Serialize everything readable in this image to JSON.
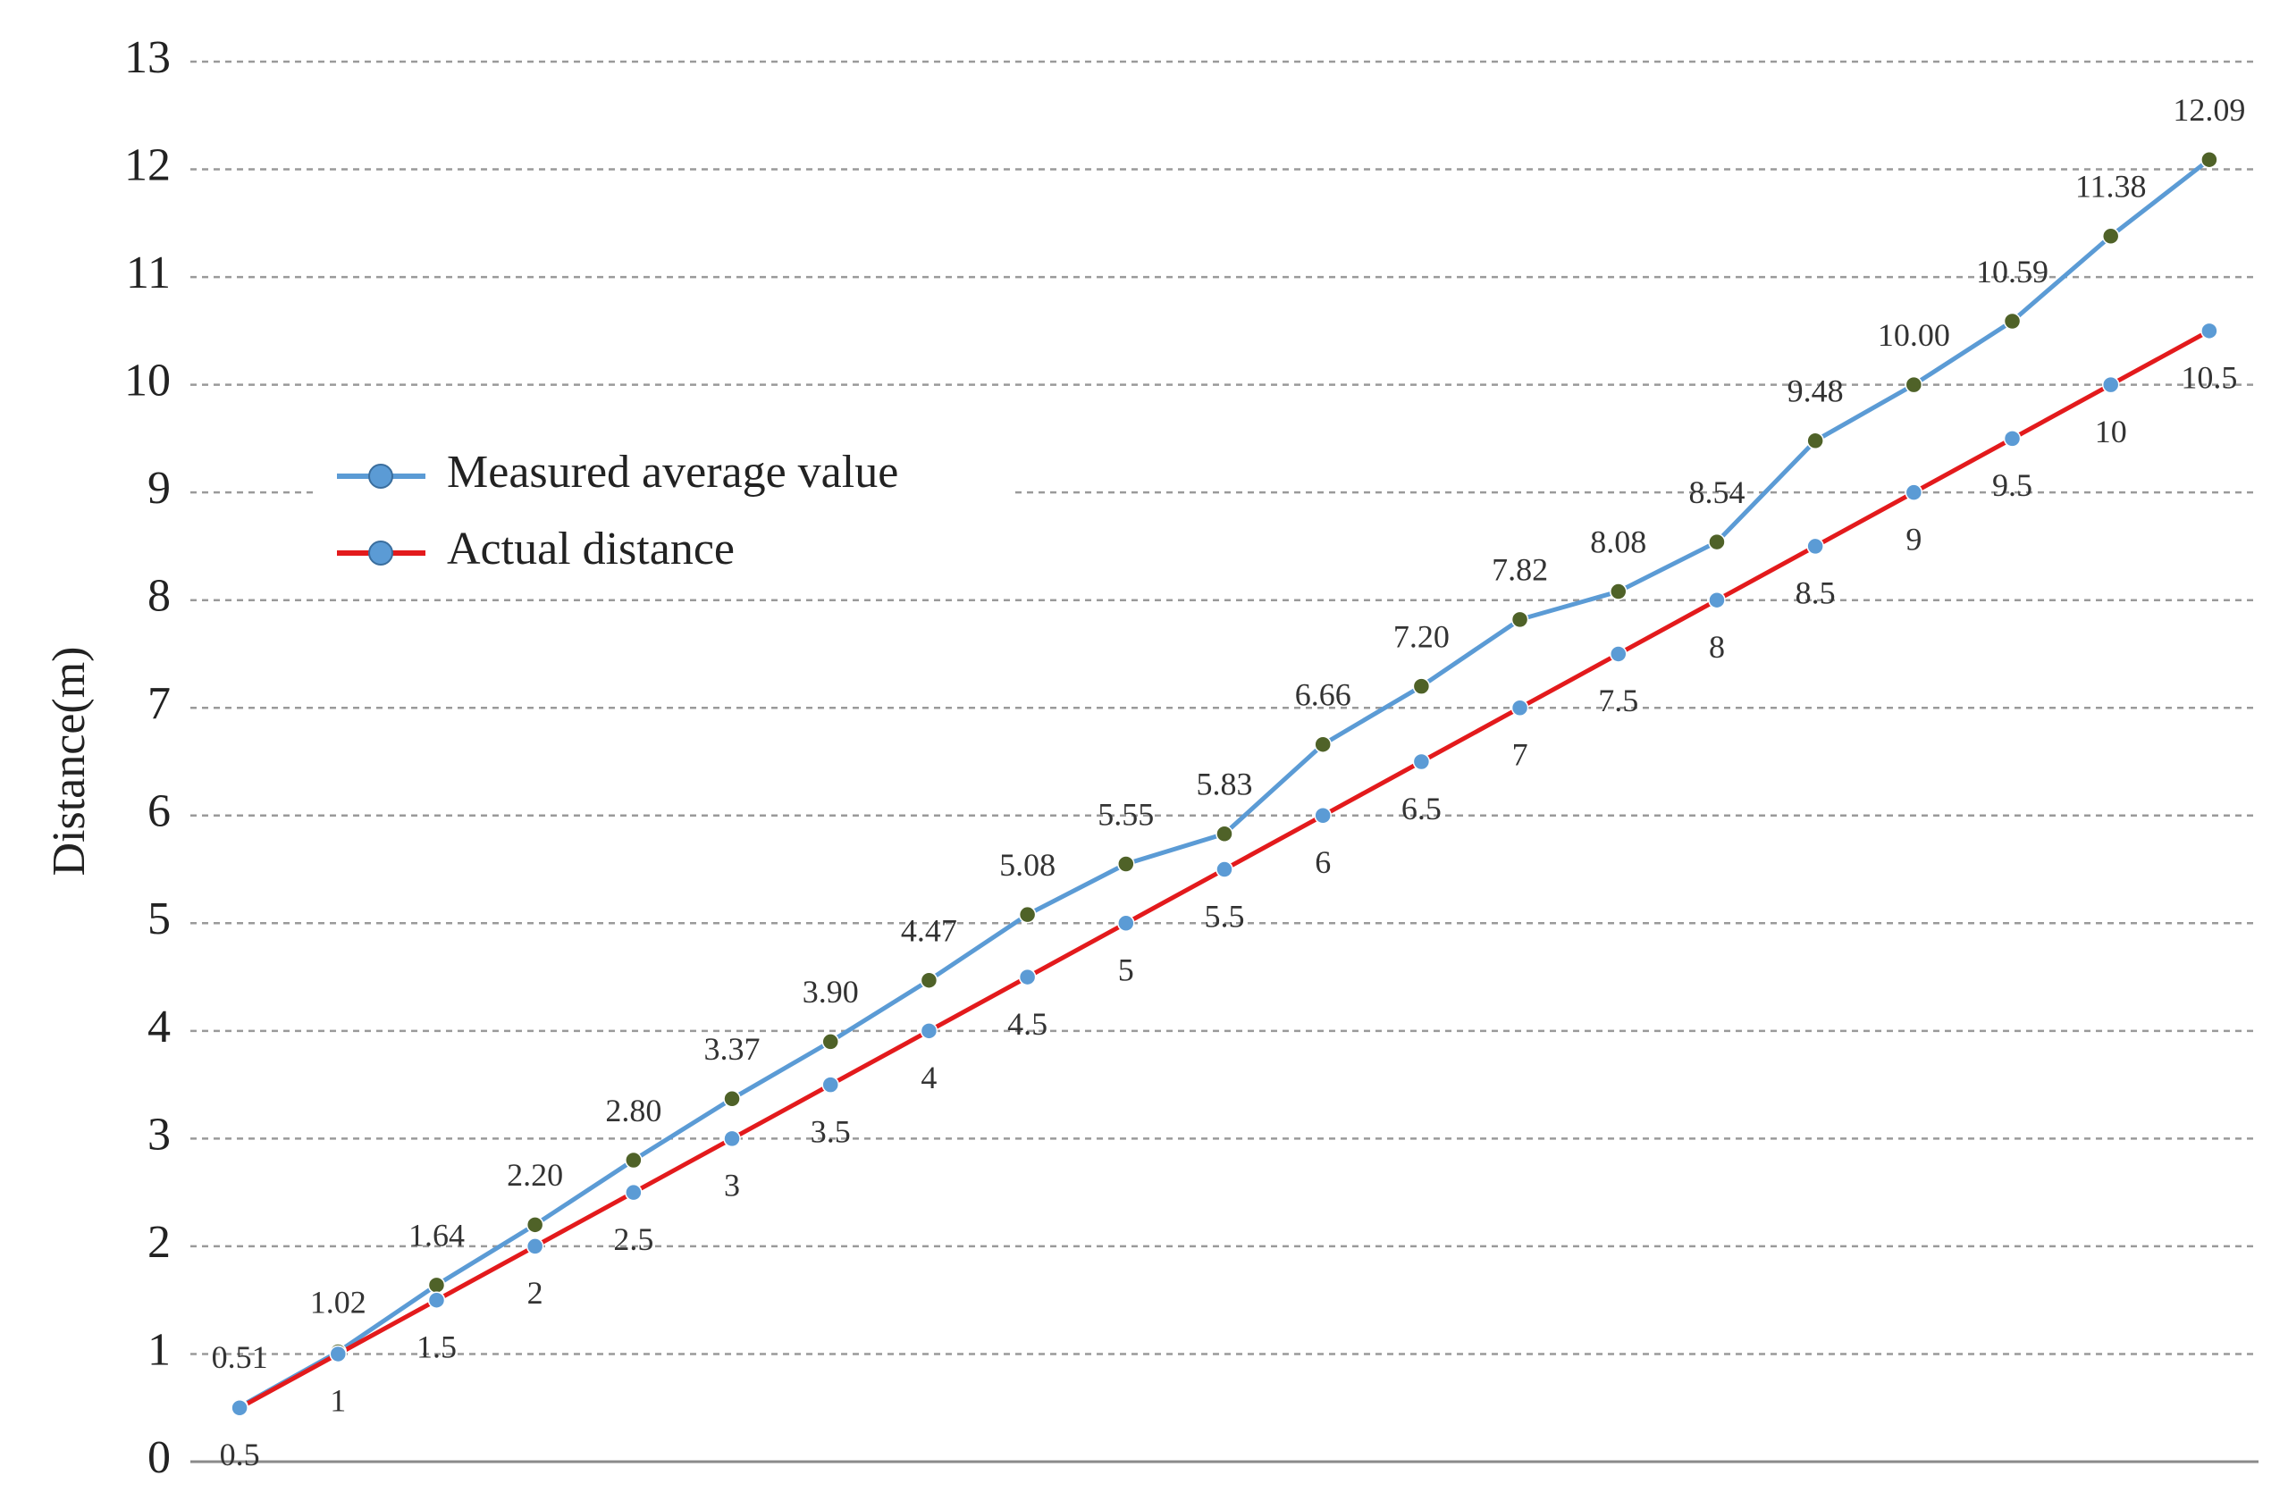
{
  "chart_data": {
    "type": "line",
    "y_label": "Distance(m)",
    "categories": [
      null,
      null,
      null,
      null,
      null,
      null,
      null,
      null,
      null,
      null,
      null,
      null,
      null,
      null,
      null,
      null,
      null,
      null,
      null,
      null,
      null
    ],
    "series": [
      {
        "name": "Measured average value",
        "color": "#5b9bd5",
        "marker_color": "#4f6228",
        "values": [
          0.51,
          1.02,
          1.64,
          2.2,
          2.8,
          3.37,
          3.9,
          4.47,
          5.08,
          5.55,
          5.83,
          6.66,
          7.2,
          7.82,
          8.08,
          8.54,
          9.48,
          10.0,
          10.59,
          11.38,
          12.09
        ],
        "value_labels": [
          "0.51",
          "1.02",
          "1.64",
          "2.20",
          "2.80",
          "3.37",
          "3.90",
          "4.47",
          "5.08",
          "5.55",
          "5.83",
          "6.66",
          "7.20",
          "7.82",
          "8.08",
          "8.54",
          "9.48",
          "10.00",
          "10.59",
          "11.38",
          "12.09"
        ]
      },
      {
        "name": "Actual distance",
        "color": "#e31a1c",
        "marker_color": "#5b9bd5",
        "values": [
          0.5,
          1,
          1.5,
          2,
          2.5,
          3,
          3.5,
          4,
          4.5,
          5,
          5.5,
          6,
          6.5,
          7,
          7.5,
          8,
          8.5,
          9,
          9.5,
          10,
          10.5
        ]
      }
    ],
    "ylim": [
      0,
      13
    ],
    "yticks": [
      0,
      1,
      2,
      3,
      4,
      5,
      6,
      7,
      8,
      9,
      10,
      11,
      12,
      13
    ],
    "grid": true,
    "legend": "upper left"
  }
}
